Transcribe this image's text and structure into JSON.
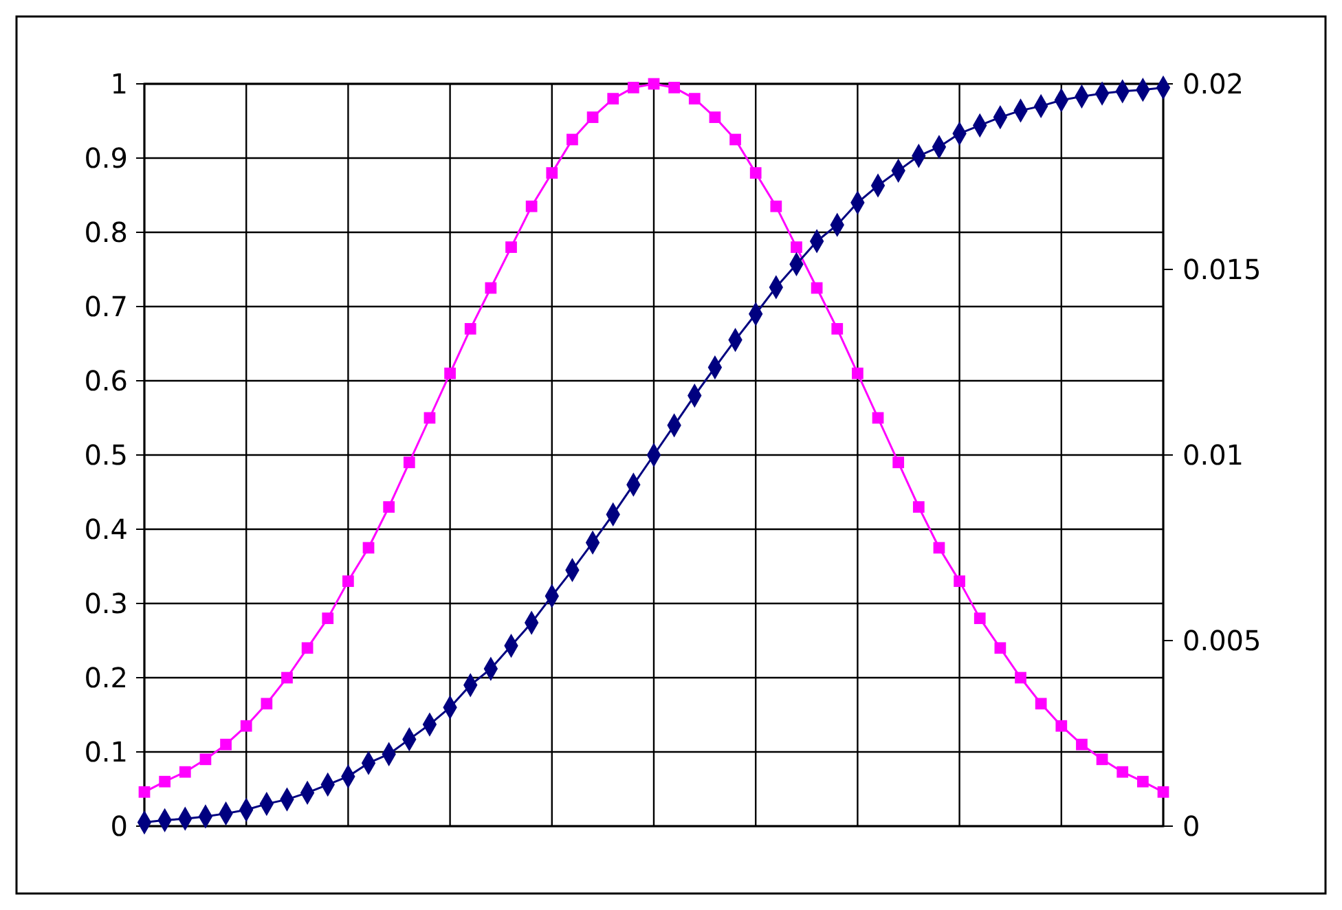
{
  "chart_data": {
    "type": "line",
    "categories": [
      null,
      null,
      null,
      null,
      null,
      null,
      null,
      null,
      null,
      null,
      null,
      null,
      null,
      null,
      null,
      null,
      null,
      null,
      null,
      null,
      null,
      null,
      null,
      null,
      null,
      null,
      null,
      null,
      null,
      null,
      null,
      null,
      null,
      null,
      null,
      null,
      null,
      null,
      null,
      null,
      null,
      null,
      null,
      null,
      null,
      null,
      null,
      null,
      null,
      null,
      null
    ],
    "ylim": [
      0,
      1
    ],
    "yticks": [
      0,
      0.1,
      0.2,
      0.3,
      0.4,
      0.5,
      0.6,
      0.7,
      0.8,
      0.9,
      1
    ],
    "y2lim": [
      0,
      0.02
    ],
    "y2ticks": [
      0,
      0.005,
      0.01,
      0.015,
      0.02
    ],
    "grid": true,
    "series": [
      {
        "color": "#ff00ff",
        "marker": "square",
        "axis": "y2",
        "values": [
          0.00092,
          0.0012,
          0.00146,
          0.0018,
          0.0022,
          0.0027,
          0.0033,
          0.004,
          0.0048,
          0.0056,
          0.0066,
          0.0075,
          0.0086,
          0.0098,
          0.011,
          0.0122,
          0.0134,
          0.0145,
          0.0156,
          0.0167,
          0.0176,
          0.0185,
          0.0191,
          0.0196,
          0.0199,
          0.02,
          0.0199,
          0.0196,
          0.0191,
          0.0185,
          0.0176,
          0.0167,
          0.0156,
          0.0145,
          0.0134,
          0.0122,
          0.011,
          0.0098,
          0.0086,
          0.0075,
          0.0066,
          0.0056,
          0.0048,
          0.004,
          0.0033,
          0.0027,
          0.0022,
          0.0018,
          0.00146,
          0.0012,
          0.00092
        ]
      },
      {
        "color": "#000080",
        "marker": "diamond",
        "values": [
          0.005,
          0.008,
          0.01,
          0.013,
          0.017,
          0.022,
          0.03,
          0.036,
          0.045,
          0.056,
          0.067,
          0.085,
          0.097,
          0.117,
          0.137,
          0.16,
          0.19,
          0.212,
          0.243,
          0.274,
          0.31,
          0.345,
          0.382,
          0.42,
          0.46,
          0.5,
          0.54,
          0.58,
          0.618,
          0.655,
          0.69,
          0.726,
          0.757,
          0.788,
          0.81,
          0.84,
          0.863,
          0.883,
          0.903,
          0.915,
          0.933,
          0.944,
          0.955,
          0.964,
          0.97,
          0.978,
          0.983,
          0.987,
          0.99,
          0.992,
          0.995
        ]
      }
    ]
  }
}
